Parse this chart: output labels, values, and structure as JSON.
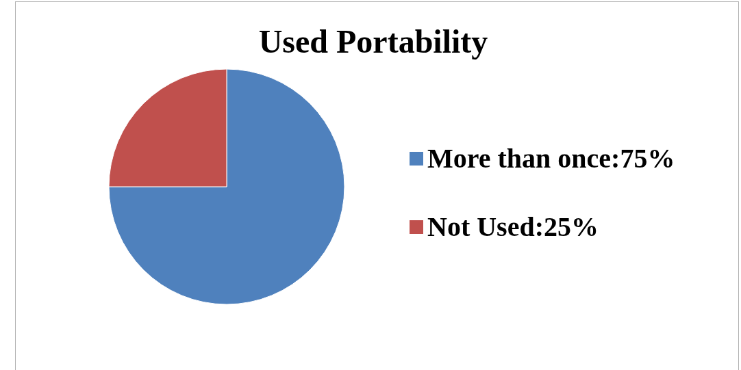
{
  "chart_data": {
    "type": "pie",
    "title": "Used Portability",
    "categories": [
      "More than once:75%",
      "Not Used:25%"
    ],
    "values": [
      75,
      25
    ],
    "colors": [
      "#4f81bd",
      "#c0504d"
    ],
    "legend": "right"
  }
}
